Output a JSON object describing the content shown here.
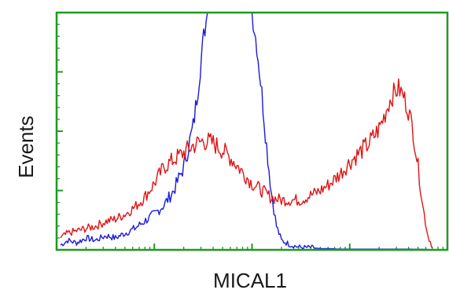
{
  "chart_data": {
    "type": "line",
    "title": "",
    "xlabel": "MICAL1",
    "ylabel": "Events",
    "x_scale": "log",
    "xlim": [
      1,
      10000
    ],
    "ylim": [
      0,
      100
    ],
    "grid": false,
    "legend": "none",
    "frame_color": "#1f9a1f",
    "series": [
      {
        "color": "#1a1adc",
        "x": [
          1.1,
          1.3,
          1.6,
          2.0,
          2.5,
          3.2,
          4.0,
          5.0,
          6.3,
          7.9,
          10,
          12.6,
          15.8,
          20,
          25,
          28,
          32,
          35,
          40,
          45,
          50,
          56,
          63,
          70,
          79,
          89,
          100,
          112,
          126,
          141,
          158,
          178,
          200,
          251,
          316,
          398,
          501,
          631,
          794,
          1000,
          2000,
          4000,
          6310
        ],
        "y": [
          2,
          4,
          3,
          5,
          4,
          6,
          5,
          7,
          9,
          12,
          15,
          19,
          25,
          35,
          52,
          68,
          90,
          100,
          100,
          100,
          100,
          100,
          100,
          100,
          100,
          100,
          100,
          86,
          66,
          44,
          24,
          10,
          4,
          2,
          1,
          1,
          0.5,
          0.5,
          0.3,
          0.3,
          0.3,
          0.3,
          0.2
        ]
      },
      {
        "color": "#e01414",
        "x": [
          1.1,
          1.3,
          1.6,
          2.0,
          2.5,
          3.2,
          4.0,
          5.0,
          6.3,
          7.9,
          10,
          12.6,
          15.8,
          20,
          25,
          32,
          40,
          50,
          63,
          79,
          100,
          126,
          158,
          200,
          251,
          316,
          398,
          501,
          631,
          794,
          1000,
          1259,
          1585,
          1995,
          2239,
          2512,
          2818,
          3162,
          3548,
          3981,
          4467,
          5012,
          5623,
          6310,
          7079
        ],
        "y": [
          5,
          7,
          8,
          9,
          10,
          12,
          13,
          15,
          18,
          22,
          28,
          35,
          38,
          41,
          44,
          46,
          45,
          42,
          38,
          33,
          28,
          25,
          22,
          21,
          21,
          21,
          23,
          25,
          28,
          32,
          37,
          41,
          45,
          51,
          56,
          62,
          66,
          68,
          65,
          59,
          50,
          35,
          18,
          6,
          1
        ]
      }
    ]
  }
}
